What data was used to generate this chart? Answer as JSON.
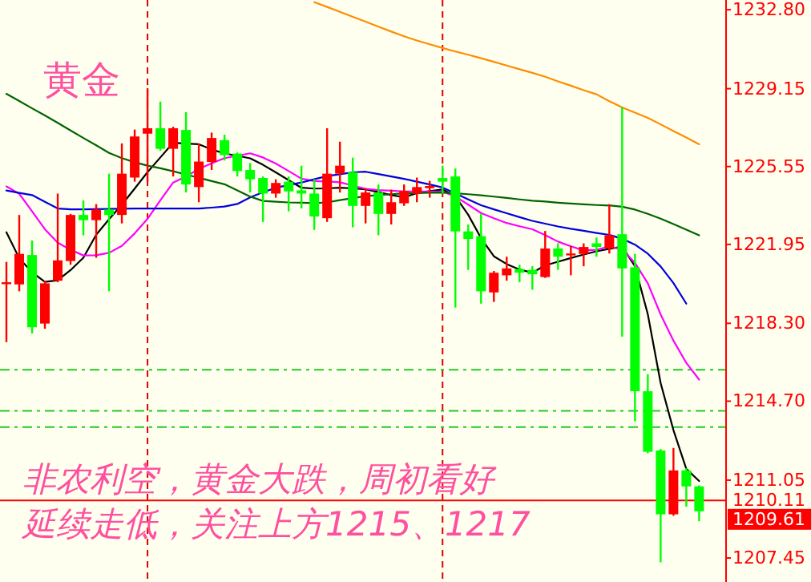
{
  "chart_data": {
    "type": "candlestick",
    "title": "黄金",
    "categories": [
      null,
      null,
      null,
      null,
      null,
      null,
      null,
      null,
      null,
      null,
      null,
      null,
      null,
      null,
      null,
      null,
      null,
      null,
      null,
      null,
      null,
      null,
      null,
      null,
      null,
      null,
      null,
      null,
      null,
      null,
      null,
      null,
      null,
      null,
      null,
      null,
      null,
      null,
      null,
      null,
      null,
      null,
      null,
      null,
      null,
      null,
      null,
      null,
      null,
      null,
      null,
      null,
      null,
      null,
      null
    ],
    "ohlc": [
      [
        1220.12,
        1221.14,
        1217.43,
        1220.2
      ],
      [
        1220.1,
        1223.31,
        1219.78,
        1221.51
      ],
      [
        1221.46,
        1222.13,
        1217.83,
        1218.12
      ],
      [
        1218.29,
        1220.27,
        1218.05,
        1220.15
      ],
      [
        1220.27,
        1224.3,
        1220.2,
        1221.21
      ],
      [
        1221.18,
        1223.36,
        1221.01,
        1223.31
      ],
      [
        1223.31,
        1223.98,
        1222.37,
        1223.07
      ],
      [
        1223.07,
        1223.81,
        1221.33,
        1223.56
      ],
      [
        1223.56,
        1225.22,
        1219.78,
        1223.31
      ],
      [
        1223.31,
        1226.62,
        1222.92,
        1225.22
      ],
      [
        1225.04,
        1227.26,
        1224.85,
        1226.94
      ],
      [
        1227.07,
        1229.17,
        1224.85,
        1227.32
      ],
      [
        1227.32,
        1228.55,
        1226.28,
        1226.37
      ],
      [
        1226.37,
        1227.39,
        1225.09,
        1227.32
      ],
      [
        1227.24,
        1228.06,
        1224.35,
        1224.72
      ],
      [
        1224.6,
        1226.62,
        1223.9,
        1225.78
      ],
      [
        1225.76,
        1227.12,
        1225.39,
        1226.87
      ],
      [
        1226.77,
        1227.02,
        1225.83,
        1226.08
      ],
      [
        1226.15,
        1226.2,
        1225.09,
        1225.34
      ],
      [
        1225.39,
        1225.71,
        1224.35,
        1224.96
      ],
      [
        1225.02,
        1225.09,
        1222.99,
        1224.3
      ],
      [
        1224.3,
        1224.96,
        1224.11,
        1224.79
      ],
      [
        1224.85,
        1225.09,
        1223.48,
        1224.4
      ],
      [
        1224.45,
        1225.59,
        1223.61,
        1224.3
      ],
      [
        1224.3,
        1224.96,
        1222.62,
        1223.24
      ],
      [
        1223.16,
        1227.32,
        1222.99,
        1225.22
      ],
      [
        1225.22,
        1226.7,
        1224.35,
        1225.59
      ],
      [
        1225.29,
        1225.96,
        1222.74,
        1223.73
      ],
      [
        1223.73,
        1224.55,
        1222.92,
        1224.35
      ],
      [
        1224.35,
        1224.72,
        1222.37,
        1223.36
      ],
      [
        1223.36,
        1224.48,
        1222.87,
        1223.9
      ],
      [
        1223.85,
        1224.72,
        1223.73,
        1224.42
      ],
      [
        1224.3,
        1225.04,
        1223.9,
        1224.6
      ],
      [
        1224.55,
        1224.89,
        1224.11,
        1224.65
      ],
      [
        1225.02,
        1225.59,
        1224.3,
        1224.85
      ],
      [
        1225.09,
        1225.46,
        1219.03,
        1222.55
      ],
      [
        1222.55,
        1222.87,
        1220.77,
        1222.2
      ],
      [
        1222.33,
        1223.36,
        1219.21,
        1219.78
      ],
      [
        1219.73,
        1220.72,
        1219.29,
        1220.64
      ],
      [
        1220.52,
        1221.38,
        1220.27,
        1220.84
      ],
      [
        1220.81,
        1221.01,
        1220.2,
        1220.64
      ],
      [
        1220.77,
        1220.94,
        1219.85,
        1220.57
      ],
      [
        1220.44,
        1222.57,
        1220.4,
        1221.76
      ],
      [
        1221.76,
        1222.0,
        1220.77,
        1221.38
      ],
      [
        1221.49,
        1221.88,
        1220.52,
        1221.53
      ],
      [
        1221.51,
        1222.0,
        1220.94,
        1221.83
      ],
      [
        1222.0,
        1222.27,
        1221.38,
        1221.83
      ],
      [
        1221.76,
        1223.81,
        1221.53,
        1222.37
      ],
      [
        1222.42,
        1228.3,
        1217.68,
        1220.84
      ],
      [
        1220.89,
        1221.51,
        1213.77,
        1215.16
      ],
      [
        1215.16,
        1215.95,
        1212.29,
        1212.36
      ],
      [
        1212.42,
        1212.49,
        1207.25,
        1209.47
      ],
      [
        1209.47,
        1212.54,
        1209.4,
        1211.5
      ],
      [
        1211.5,
        1211.6,
        1209.82,
        1210.76
      ],
      [
        1210.76,
        1210.81,
        1209.15,
        1209.61
      ]
    ],
    "colors": [
      "#ff0000",
      "#ff0000",
      "#00ff00",
      "#ff0000",
      "#ff0000",
      "#ff0000",
      "#00ff00",
      "#ff0000",
      "#00ff00",
      "#ff0000",
      "#ff0000",
      "#ff0000",
      "#00ff00",
      "#ff0000",
      "#00ff00",
      "#ff0000",
      "#ff0000",
      "#00ff00",
      "#00ff00",
      "#00ff00",
      "#00ff00",
      "#ff0000",
      "#00ff00",
      "#00ff00",
      "#00ff00",
      "#ff0000",
      "#ff0000",
      "#00ff00",
      "#ff0000",
      "#00ff00",
      "#ff0000",
      "#ff0000",
      "#ff0000",
      "#ff0000",
      "#00ff00",
      "#00ff00",
      "#00ff00",
      "#00ff00",
      "#ff0000",
      "#ff0000",
      "#00ff00",
      "#00ff00",
      "#ff0000",
      "#00ff00",
      "#ff0000",
      "#ff0000",
      "#00ff00",
      "#ff0000",
      "#00ff00",
      "#00ff00",
      "#00ff00",
      "#00ff00",
      "#ff0000",
      "#00ff00",
      "#00ff00"
    ],
    "series": [
      {
        "type": "line",
        "color": "#000000",
        "values": [
          1222.51,
          1221.31,
          1220.66,
          1220.22,
          1220.29,
          1220.76,
          1221.33,
          1222.4,
          1223.11,
          1223.79,
          1224.53,
          1225.29,
          1225.97,
          1226.65,
          1226.61,
          1226.58,
          1226.34,
          1226.15,
          1226.05,
          1225.93,
          1225.63,
          1225.28,
          1224.92,
          1224.57,
          1224.53,
          1224.54,
          1224.57,
          1224.54,
          1224.5,
          1224.37,
          1224.23,
          1224.13,
          1224.32,
          1224.42,
          1224.49,
          1224.17,
          1223.32,
          1222.24,
          1221.4,
          1221.04,
          1220.79,
          1220.64,
          1220.98,
          1221.15,
          1221.32,
          1221.48,
          1221.63,
          1221.74,
          1221.85,
          1220.94,
          1218.72,
          1215.54,
          1213.36,
          1211.57,
          1211.01
        ]
      },
      {
        "type": "line",
        "color": "#ff00ff",
        "values": [
          1224.63,
          1224.29,
          1223.48,
          1222.65,
          1222.03,
          1221.7,
          1221.44,
          1221.45,
          1221.56,
          1221.88,
          1222.46,
          1223.13,
          1223.99,
          1224.81,
          1225.09,
          1225.44,
          1225.7,
          1225.94,
          1226.05,
          1226.16,
          1225.97,
          1225.69,
          1225.34,
          1224.99,
          1224.88,
          1224.86,
          1224.82,
          1224.67,
          1224.52,
          1224.46,
          1224.43,
          1224.4,
          1224.4,
          1224.4,
          1224.39,
          1224.16,
          1223.79,
          1223.4,
          1223.16,
          1222.94,
          1222.79,
          1222.65,
          1222.38,
          1222.08,
          1221.86,
          1221.67,
          1221.7,
          1221.85,
          1221.71,
          1221.1,
          1220.15,
          1218.71,
          1217.5,
          1216.47,
          1215.7
        ]
      },
      {
        "type": "line",
        "color": "#0000dd",
        "values": [
          1224.44,
          1224.33,
          1224.23,
          1223.92,
          1223.61,
          1223.57,
          1223.57,
          1223.58,
          1223.59,
          1223.6,
          1223.61,
          1223.61,
          1223.61,
          1223.61,
          1223.61,
          1223.61,
          1223.65,
          1223.7,
          1223.82,
          1224.12,
          1224.36,
          1224.57,
          1224.69,
          1224.81,
          1224.96,
          1225.11,
          1225.19,
          1225.28,
          1225.31,
          1225.2,
          1225.09,
          1224.98,
          1224.85,
          1224.72,
          1224.58,
          1224.31,
          1224.03,
          1223.76,
          1223.57,
          1223.39,
          1223.21,
          1223.04,
          1222.91,
          1222.78,
          1222.67,
          1222.58,
          1222.48,
          1222.39,
          1222.21,
          1221.94,
          1221.52,
          1220.93,
          1220.16,
          1219.21,
          null
        ]
      },
      {
        "type": "line",
        "color": "#006400",
        "values": [
          1228.91,
          1228.58,
          1228.24,
          1227.91,
          1227.57,
          1227.22,
          1226.87,
          1226.53,
          1226.18,
          1225.94,
          1225.75,
          1225.59,
          1225.47,
          1225.33,
          1225.18,
          1225.03,
          1224.88,
          1224.73,
          1224.45,
          1224.16,
          1223.96,
          1223.92,
          1223.89,
          1223.88,
          1223.86,
          1223.89,
          1224.0,
          1224.09,
          1224.18,
          1224.23,
          1224.27,
          1224.31,
          1224.32,
          1224.34,
          1224.35,
          1224.31,
          1224.27,
          1224.22,
          1224.16,
          1224.1,
          1224.03,
          1223.97,
          1223.93,
          1223.88,
          1223.84,
          1223.8,
          1223.77,
          1223.75,
          1223.69,
          1223.56,
          1223.36,
          1223.14,
          1222.89,
          1222.63,
          1222.37
        ]
      },
      {
        "type": "line",
        "color": "#ff8c00",
        "values": [
          null,
          null,
          null,
          null,
          null,
          null,
          null,
          null,
          null,
          null,
          null,
          null,
          null,
          null,
          null,
          null,
          null,
          null,
          null,
          null,
          null,
          null,
          null,
          null,
          1233.15,
          1232.93,
          1232.7,
          1232.47,
          1232.25,
          1232.02,
          1231.79,
          1231.57,
          1231.38,
          1231.2,
          1231.03,
          1230.87,
          1230.72,
          1230.56,
          1230.39,
          1230.22,
          1230.05,
          1229.88,
          1229.7,
          1229.49,
          1229.29,
          1229.08,
          1228.89,
          1228.57,
          1228.28,
          1228.04,
          1227.8,
          1227.5,
          1227.19,
          1226.89,
          1226.58
        ]
      }
    ],
    "ylim": [
      1206.34,
      1233.25
    ],
    "yticks": [
      {
        "value": 1232.8,
        "label": "1232.80"
      },
      {
        "value": 1229.15,
        "label": "1229.15"
      },
      {
        "value": 1225.55,
        "label": "1225.55"
      },
      {
        "value": 1221.95,
        "label": "1221.95"
      },
      {
        "value": 1218.3,
        "label": "1218.30"
      },
      {
        "value": 1214.7,
        "label": "1214.70"
      },
      {
        "value": 1211.05,
        "label": "1211.05"
      },
      {
        "value": 1207.45,
        "label": "1207.45"
      }
    ],
    "tick_labels": "y",
    "ref_lines": [
      {
        "axis": "y",
        "value": 1216.15,
        "color": "#22cc22",
        "line_style": "dashed"
      },
      {
        "axis": "y",
        "value": 1214.25,
        "color": "#22cc22",
        "line_style": "dashed"
      },
      {
        "axis": "y",
        "value": 1213.5,
        "color": "#22cc22",
        "line_style": "dashed"
      },
      {
        "axis": "y",
        "value": 1210.11,
        "label": "1210.11",
        "color": "#ff0000",
        "line_style": "solid"
      }
    ],
    "annotations": [
      "非农利空，黄金大跌，周初看好",
      "延续走低，关注上方1215、1217",
      "1209.61"
    ]
  }
}
